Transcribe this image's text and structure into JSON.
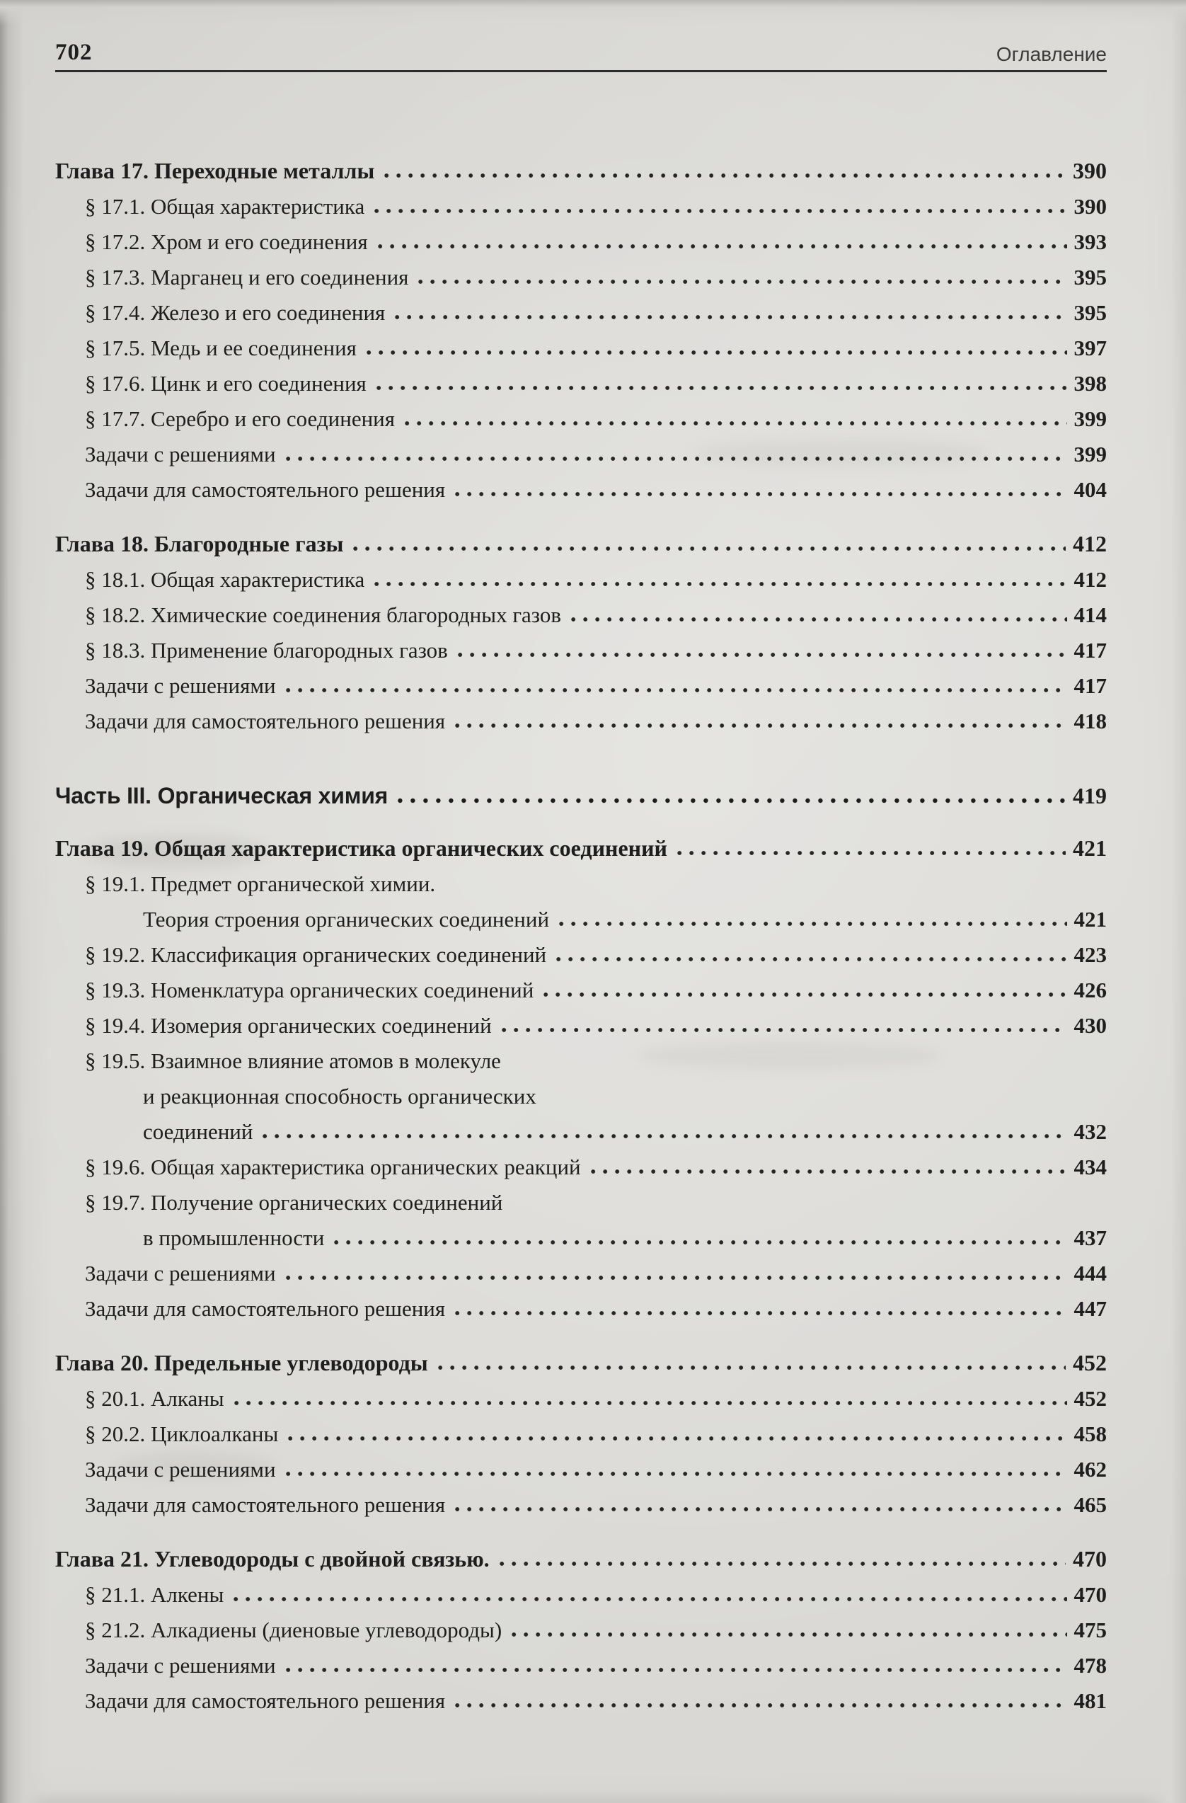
{
  "header": {
    "page_number": "702",
    "title": "Оглавление"
  },
  "colors": {
    "paper": "#d8d7d3",
    "ink": "#1e1e1e"
  },
  "toc": {
    "lines": [
      {
        "type": "chapter",
        "text": "Глава 17. Переходные металлы",
        "page": "390"
      },
      {
        "type": "section",
        "text": "§ 17.1. Общая характеристика",
        "page": "390"
      },
      {
        "type": "section",
        "text": "§ 17.2. Хром и его соединения",
        "page": "393"
      },
      {
        "type": "section",
        "text": "§ 17.3. Марганец и его соединения",
        "page": "395"
      },
      {
        "type": "section",
        "text": "§ 17.4. Железо и его соединения",
        "page": "395"
      },
      {
        "type": "section",
        "text": "§ 17.5. Медь и ее соединения",
        "page": "397"
      },
      {
        "type": "section",
        "text": "§ 17.6. Цинк и его соединения",
        "page": "398"
      },
      {
        "type": "section",
        "text": "§ 17.7. Серебро и его соединения",
        "page": "399"
      },
      {
        "type": "plain",
        "text": "Задачи с решениями",
        "page": "399"
      },
      {
        "type": "plain",
        "text": "Задачи для самостоятельного решения",
        "page": "404"
      },
      {
        "type": "chapter",
        "text": "Глава 18. Благородные газы",
        "page": "412"
      },
      {
        "type": "section",
        "text": "§ 18.1. Общая характеристика",
        "page": "412"
      },
      {
        "type": "section",
        "text": "§ 18.2. Химические соединения благородных газов",
        "page": "414"
      },
      {
        "type": "section",
        "text": "§ 18.3. Применение благородных газов",
        "page": "417"
      },
      {
        "type": "plain",
        "text": "Задачи с решениями",
        "page": "417"
      },
      {
        "type": "plain",
        "text": "Задачи для самостоятельного решения",
        "page": "418"
      },
      {
        "type": "part",
        "text": "Часть III. Органическая химия",
        "page": "419"
      },
      {
        "type": "chapter",
        "text": "Глава 19. Общая характеристика органических соединений",
        "page": "421"
      },
      {
        "type": "section",
        "text": "§ 19.1. Предмет органической химии.",
        "page": ""
      },
      {
        "type": "cont",
        "text": "Теория строения органических соединений",
        "page": "421"
      },
      {
        "type": "section",
        "text": "§ 19.2. Классификация органических соединений",
        "page": "423"
      },
      {
        "type": "section",
        "text": "§ 19.3. Номенклатура органических соединений",
        "page": "426"
      },
      {
        "type": "section",
        "text": "§ 19.4. Изомерия органических соединений",
        "page": "430"
      },
      {
        "type": "section",
        "text": "§ 19.5. Взаимное влияние атомов в молекуле",
        "page": ""
      },
      {
        "type": "cont",
        "text": "и реакционная способность органических",
        "page": ""
      },
      {
        "type": "cont",
        "text": "соединений",
        "page": "432"
      },
      {
        "type": "section",
        "text": "§ 19.6. Общая характеристика органических реакций",
        "page": "434"
      },
      {
        "type": "section",
        "text": "§ 19.7. Получение органических соединений",
        "page": ""
      },
      {
        "type": "cont",
        "text": "в промышленности",
        "page": "437"
      },
      {
        "type": "plain",
        "text": "Задачи с решениями",
        "page": "444"
      },
      {
        "type": "plain",
        "text": "Задачи для самостоятельного решения",
        "page": "447"
      },
      {
        "type": "chapter",
        "text": "Глава 20. Предельные углеводороды",
        "page": "452"
      },
      {
        "type": "section",
        "text": "§ 20.1. Алканы",
        "page": "452"
      },
      {
        "type": "section",
        "text": "§ 20.2. Циклоалканы",
        "page": "458"
      },
      {
        "type": "plain",
        "text": "Задачи с решениями",
        "page": "462"
      },
      {
        "type": "plain",
        "text": "Задачи для самостоятельного решения",
        "page": "465"
      },
      {
        "type": "chapter",
        "text": "Глава 21. Углеводороды с двойной связью.",
        "page": "470"
      },
      {
        "type": "section",
        "text": "§ 21.1. Алкены",
        "page": "470"
      },
      {
        "type": "section",
        "text": "§ 21.2. Алкадиены (диеновые углеводороды)",
        "page": "475"
      },
      {
        "type": "plain",
        "text": "Задачи с решениями",
        "page": "478"
      },
      {
        "type": "plain",
        "text": "Задачи для самостоятельного решения",
        "page": "481"
      }
    ]
  }
}
